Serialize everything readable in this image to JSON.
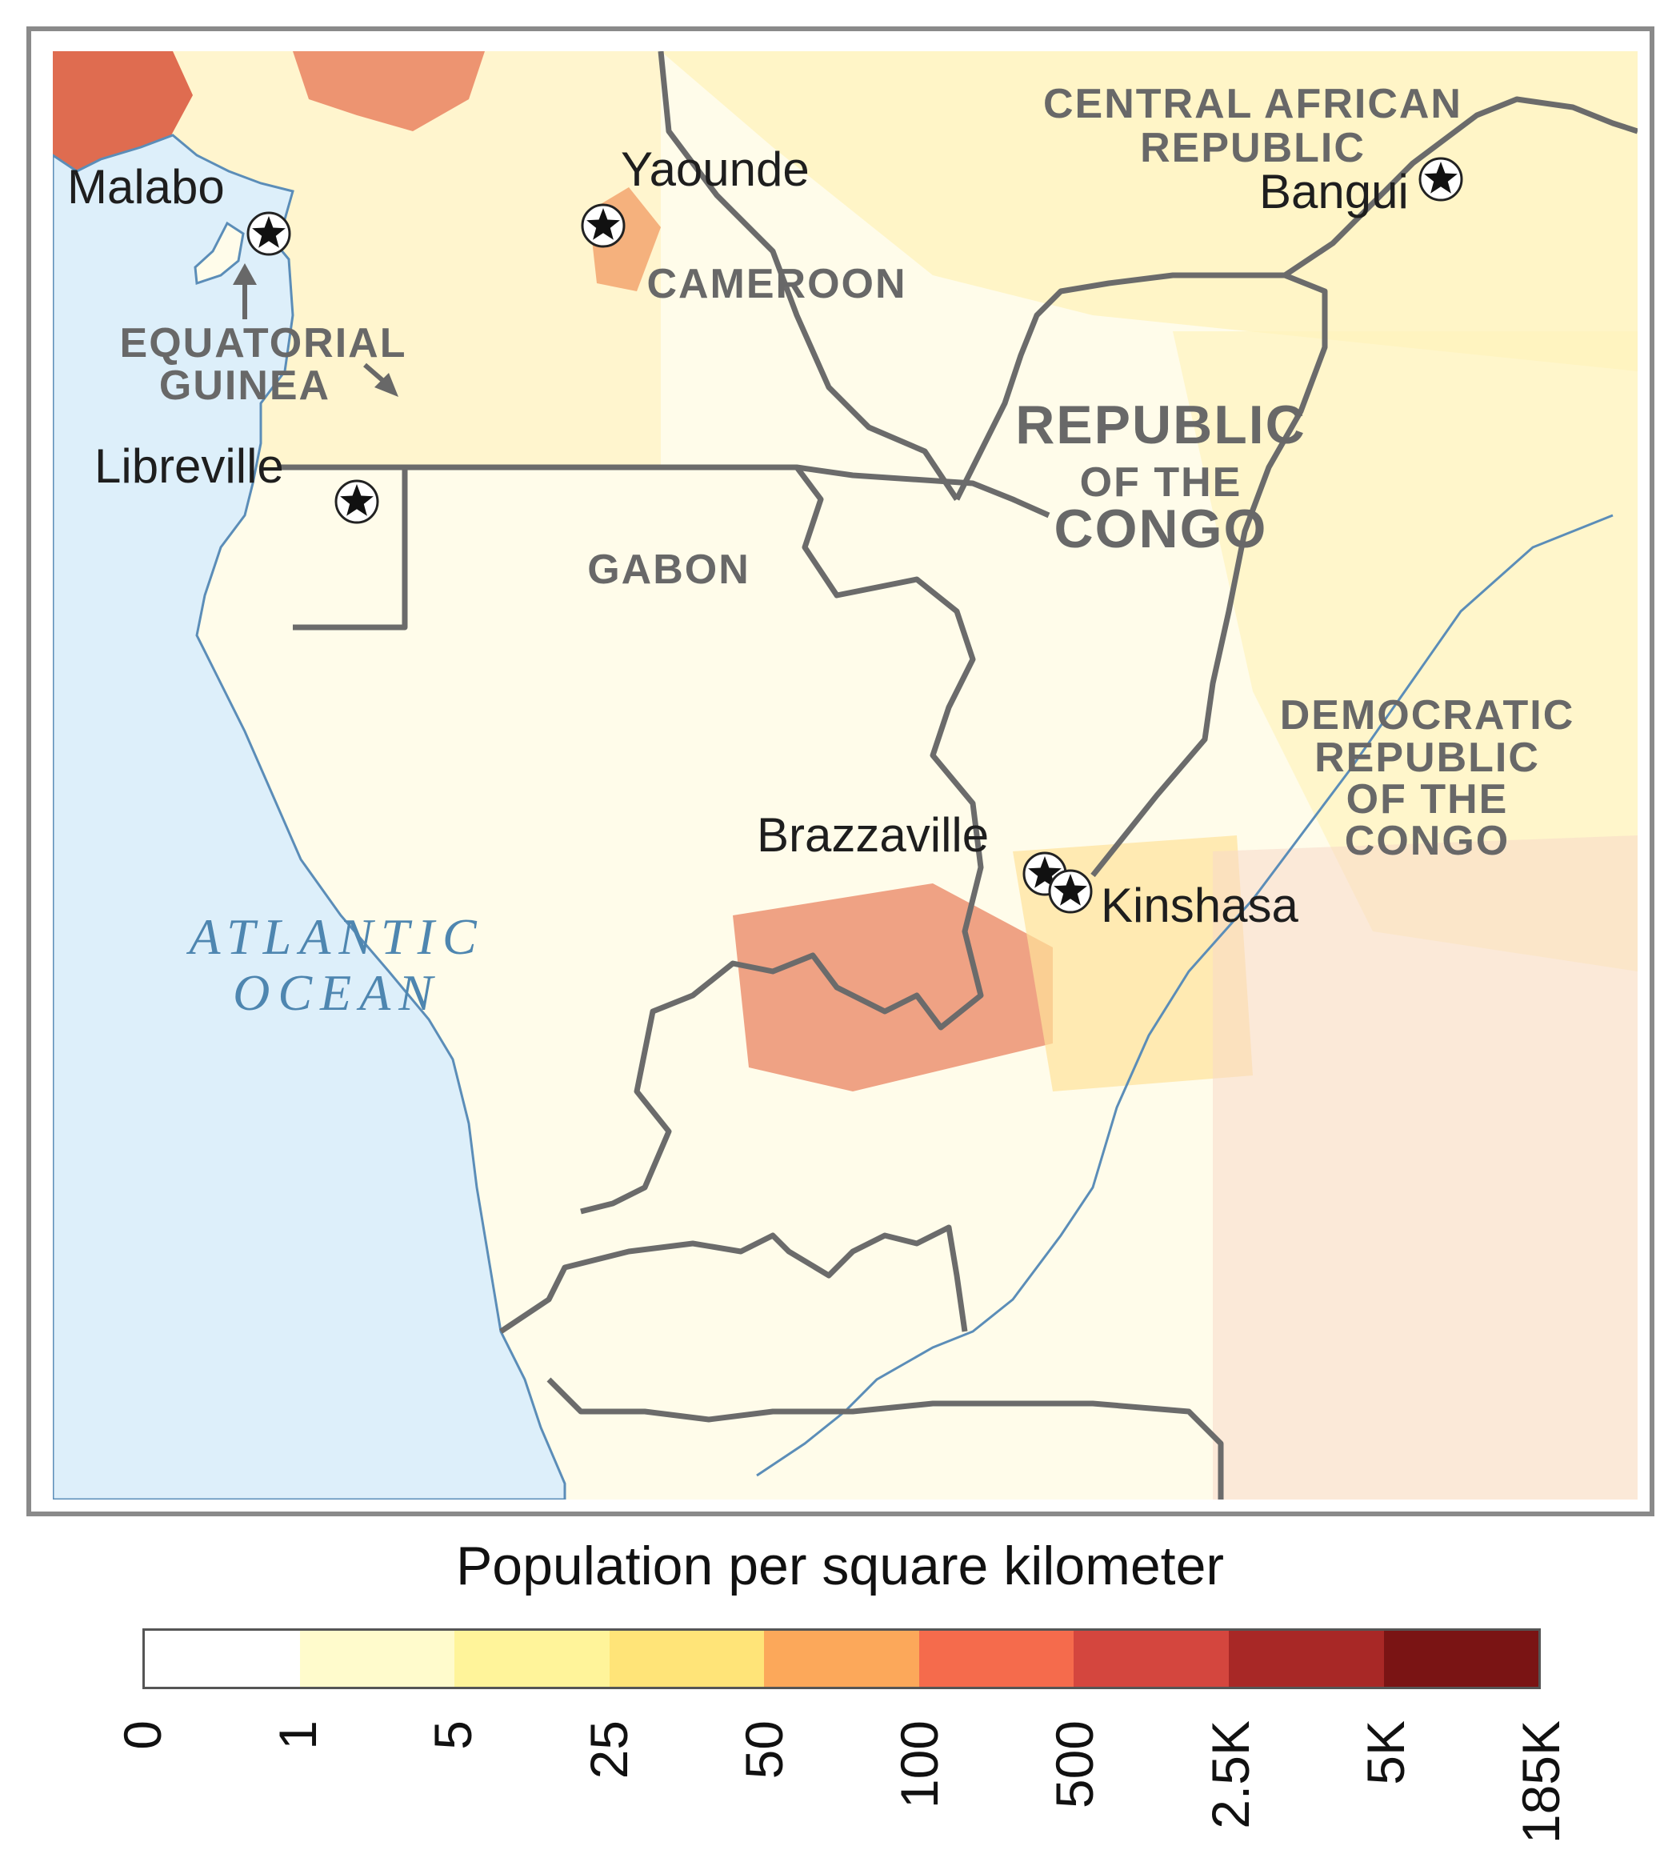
{
  "map": {
    "countries": {
      "car_line1": "CENTRAL AFRICAN",
      "car_line2": "REPUBLIC",
      "cameroon": "CAMEROON",
      "eq_guinea_line1": "EQUATORIAL",
      "eq_guinea_line2": "GUINEA",
      "gabon": "GABON",
      "roc_line1": "REPUBLIC",
      "roc_line2": "OF THE",
      "roc_line3": "CONGO",
      "drc_line1": "DEMOCRATIC",
      "drc_line2": "REPUBLIC",
      "drc_line3": "OF THE",
      "drc_line4": "CONGO"
    },
    "cities": {
      "malabo": "Malabo",
      "yaounde": "Yaounde",
      "bangui": "Bangui",
      "libreville": "Libreville",
      "brazzaville": "Brazzaville",
      "kinshasa": "Kinshasa"
    },
    "ocean_line1": "ATLANTIC",
    "ocean_line2": "OCEAN",
    "colors": {
      "water": "#dff0fb",
      "coast": "#5b8db8",
      "border": "#6b6b6b",
      "land": "#fffbe0"
    }
  },
  "legend": {
    "title": "Population per square kilometer",
    "ticks": [
      "0",
      "1",
      "5",
      "25",
      "50",
      "100",
      "500",
      "2.5K",
      "5K",
      "185K"
    ],
    "colors": [
      "#ffffff",
      "#fffbcc",
      "#fff49a",
      "#ffe478",
      "#fca85a",
      "#f56b4c",
      "#d4463e",
      "#a82826",
      "#7a1414"
    ]
  }
}
